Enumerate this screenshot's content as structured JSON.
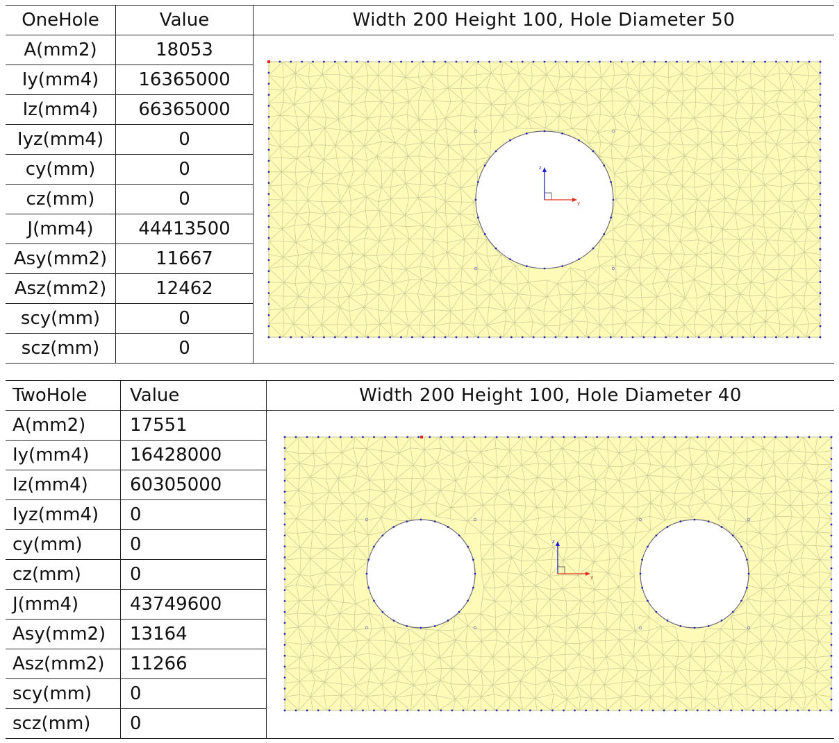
{
  "table1": {
    "col_headers": [
      "OneHole",
      "Value"
    ],
    "figure_title": "Width  200  Height  100,  Hole  Diameter  50",
    "rows": [
      {
        "label": "A(mm2)",
        "value": "18053"
      },
      {
        "label": "Iy(mm4)",
        "value": "16365000"
      },
      {
        "label": "Iz(mm4)",
        "value": "66365000"
      },
      {
        "label": "Iyz(mm4)",
        "value": "0"
      },
      {
        "label": "cy(mm)",
        "value": "0"
      },
      {
        "label": "cz(mm)",
        "value": "0"
      },
      {
        "label": "J(mm4)",
        "value": "44413500"
      },
      {
        "label": "Asy(mm2)",
        "value": "11667"
      },
      {
        "label": "Asz(mm2)",
        "value": "12462"
      },
      {
        "label": "scy(mm)",
        "value": "0"
      },
      {
        "label": "scz(mm)",
        "value": "0"
      }
    ]
  },
  "table2": {
    "col_headers": [
      "TwoHole",
      "Value"
    ],
    "figure_title": "Width  200  Height  100,  Hole  Diameter  40",
    "rows": [
      {
        "label": "A(mm2)",
        "value": "17551"
      },
      {
        "label": "Iy(mm4)",
        "value": "16428000"
      },
      {
        "label": "Iz(mm4)",
        "value": "60305000"
      },
      {
        "label": "Iyz(mm4)",
        "value": "0"
      },
      {
        "label": "cy(mm)",
        "value": "0"
      },
      {
        "label": "cz(mm)",
        "value": "0"
      },
      {
        "label": "J(mm4)",
        "value": "43749600"
      },
      {
        "label": "Asy(mm2)",
        "value": "13164"
      },
      {
        "label": "Asz(mm2)",
        "value": "11266"
      },
      {
        "label": "scy(mm)",
        "value": "0"
      },
      {
        "label": "scz(mm)",
        "value": "0"
      }
    ]
  },
  "axis_labels": {
    "z": "z",
    "y": "y"
  },
  "colors": {
    "mesh_fill": "#fdfbb7",
    "mesh_line": "#cfcf9a",
    "node": "#2a2aa8",
    "hole_edge": "#6a6a7a",
    "selected_node": "#e0201a",
    "axis_z": "#2020d0",
    "axis_y": "#e03020"
  }
}
